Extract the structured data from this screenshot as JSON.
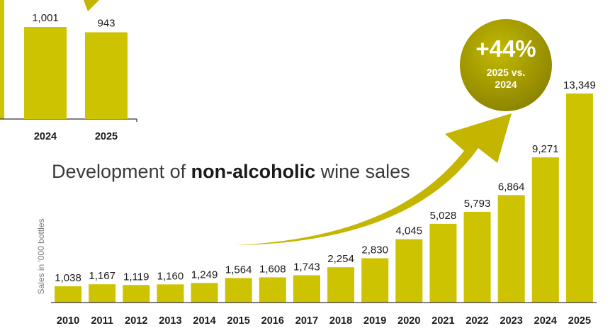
{
  "colors": {
    "bar": "#cdc300",
    "arrow": "#c4b500",
    "badge": "#9e9600",
    "axis": "#333333",
    "text": "#1a1a1a"
  },
  "inset": {
    "categories": [
      "2024",
      "2025"
    ],
    "values": [
      1001,
      943
    ],
    "value_labels": [
      "1,001",
      "943"
    ]
  },
  "badge": {
    "big": "+44%",
    "line1": "2025 vs.",
    "line2": "2024"
  },
  "chart_data": {
    "type": "bar",
    "title_parts": [
      "Development of ",
      "non-alcoholic",
      " wine sales"
    ],
    "ylabel": "Sales in '000 bottles",
    "xlabel": "",
    "ylim": [
      0,
      13349
    ],
    "grid": false,
    "categories": [
      "2010",
      "2011",
      "2012",
      "2013",
      "2014",
      "2015",
      "2016",
      "2017",
      "2018",
      "2019",
      "2020",
      "2021",
      "2022",
      "2023",
      "2024",
      "2025"
    ],
    "values": [
      1038,
      1167,
      1119,
      1160,
      1249,
      1564,
      1608,
      1743,
      2254,
      2830,
      4045,
      5028,
      5793,
      6864,
      9271,
      13349
    ],
    "value_labels": [
      "1,038",
      "1,167",
      "1,119",
      "1,160",
      "1,249",
      "1,564",
      "1,608",
      "1,743",
      "2,254",
      "2,830",
      "4,045",
      "5,028",
      "5,793",
      "6,864",
      "9,271",
      "13,349"
    ]
  }
}
